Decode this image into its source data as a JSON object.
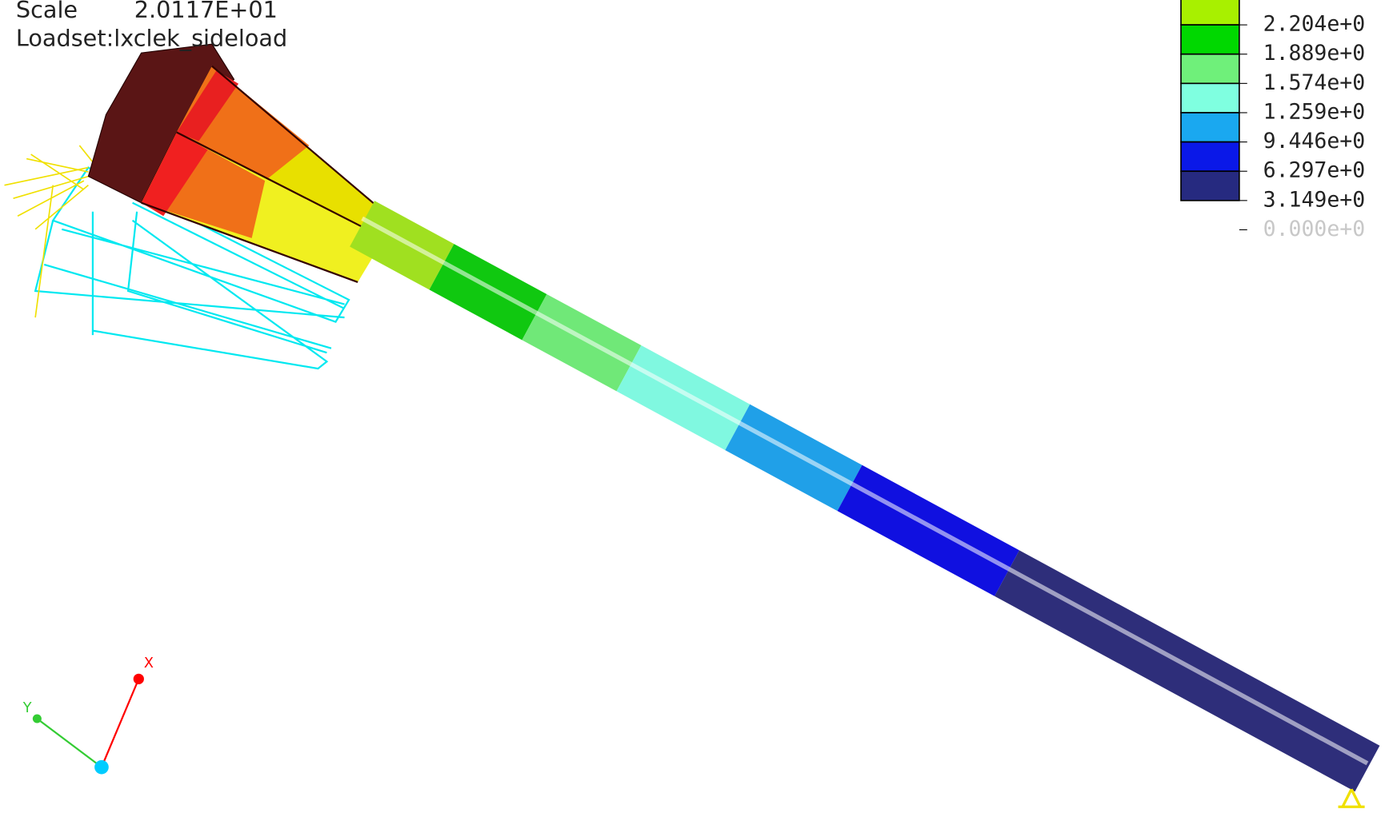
{
  "header": {
    "scale_label": "Scale",
    "scale_value": "2.0117E+01",
    "loadset": "Loadset:lxclek_sideload"
  },
  "legend": {
    "entries": [
      {
        "label": "2.204e+0",
        "color": "#a8f000"
      },
      {
        "label": "1.889e+0",
        "color": "#00d800"
      },
      {
        "label": "1.574e+0",
        "color": "#6ff07a"
      },
      {
        "label": "1.259e+0",
        "color": "#7fffe0"
      },
      {
        "label": "9.446e+0",
        "color": "#1aa8f0"
      },
      {
        "label": "6.297e+0",
        "color": "#0a18e8"
      },
      {
        "label": "3.149e+0",
        "color": "#262a80"
      },
      {
        "label": "0.000e+0",
        "color": "#c8c8c8"
      }
    ]
  },
  "triad": {
    "x": "X",
    "y": "Y"
  }
}
